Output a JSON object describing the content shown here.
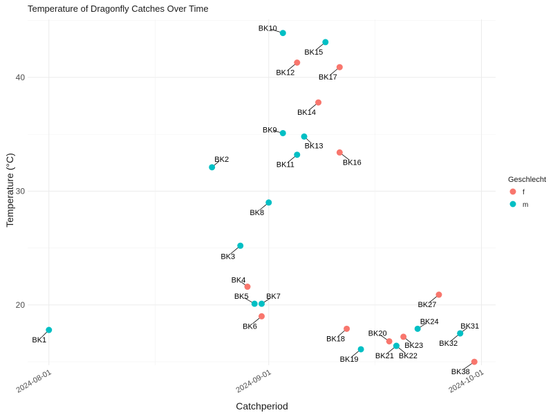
{
  "chart_data": {
    "type": "scatter",
    "title": "Temperature of Dragonfly Catches Over Time",
    "xlabel": "Catchperiod",
    "ylabel": "Temperature (°C)",
    "x_ticks": [
      "2024-08-01",
      "2024-09-01",
      "2024-10-01"
    ],
    "y_ticks": [
      20,
      30,
      40
    ],
    "x_range": [
      "2024-07-29",
      "2024-10-03"
    ],
    "ylim": [
      14.7,
      45.1
    ],
    "grid": true,
    "legend": {
      "title": "Geschlecht",
      "position": "right",
      "entries": [
        {
          "label": "f",
          "color": "#F8766D"
        },
        {
          "label": "m",
          "color": "#00BFC4"
        }
      ]
    },
    "points": [
      {
        "label": "BK1",
        "date": "2024-08-01",
        "temp": 17.8,
        "sex": "m"
      },
      {
        "label": "BK2",
        "date": "2024-08-24",
        "temp": 32.1,
        "sex": "m"
      },
      {
        "label": "BK3",
        "date": "2024-08-28",
        "temp": 25.2,
        "sex": "m"
      },
      {
        "label": "BK4",
        "date": "2024-08-29",
        "temp": 21.6,
        "sex": "f"
      },
      {
        "label": "BK5",
        "date": "2024-08-30",
        "temp": 20.1,
        "sex": "m"
      },
      {
        "label": "BK6",
        "date": "2024-08-31",
        "temp": 19.0,
        "sex": "f"
      },
      {
        "label": "BK7",
        "date": "2024-08-31",
        "temp": 20.1,
        "sex": "m"
      },
      {
        "label": "BK8",
        "date": "2024-09-01",
        "temp": 29.0,
        "sex": "m"
      },
      {
        "label": "BK9",
        "date": "2024-09-03",
        "temp": 35.1,
        "sex": "m"
      },
      {
        "label": "BK10",
        "date": "2024-09-03",
        "temp": 43.9,
        "sex": "m"
      },
      {
        "label": "BK11",
        "date": "2024-09-05",
        "temp": 33.2,
        "sex": "m"
      },
      {
        "label": "BK12",
        "date": "2024-09-05",
        "temp": 41.3,
        "sex": "f"
      },
      {
        "label": "BK13",
        "date": "2024-09-06",
        "temp": 34.8,
        "sex": "m"
      },
      {
        "label": "BK14",
        "date": "2024-09-08",
        "temp": 37.8,
        "sex": "f"
      },
      {
        "label": "BK15",
        "date": "2024-09-09",
        "temp": 43.1,
        "sex": "m"
      },
      {
        "label": "BK16",
        "date": "2024-09-11",
        "temp": 33.4,
        "sex": "f"
      },
      {
        "label": "BK17",
        "date": "2024-09-11",
        "temp": 40.9,
        "sex": "f"
      },
      {
        "label": "BK18",
        "date": "2024-09-12",
        "temp": 17.9,
        "sex": "f"
      },
      {
        "label": "BK19",
        "date": "2024-09-14",
        "temp": 16.1,
        "sex": "m"
      },
      {
        "label": "BK20",
        "date": "2024-09-18",
        "temp": 16.8,
        "sex": "f"
      },
      {
        "label": "BK21",
        "date": "2024-09-19",
        "temp": 16.4,
        "sex": "m"
      },
      {
        "label": "BK22",
        "date": "2024-09-19",
        "temp": 16.4,
        "sex": "m"
      },
      {
        "label": "BK23",
        "date": "2024-09-20",
        "temp": 17.2,
        "sex": "f"
      },
      {
        "label": "BK24",
        "date": "2024-09-22",
        "temp": 17.9,
        "sex": "m"
      },
      {
        "label": "BK27",
        "date": "2024-09-25",
        "temp": 20.9,
        "sex": "f"
      },
      {
        "label": "BK31",
        "date": "2024-09-28",
        "temp": 17.5,
        "sex": "m"
      },
      {
        "label": "BK32",
        "date": "2024-09-28",
        "temp": 17.5,
        "sex": "m"
      },
      {
        "label": "BK38",
        "date": "2024-09-30",
        "temp": 15.0,
        "sex": "f"
      }
    ]
  }
}
